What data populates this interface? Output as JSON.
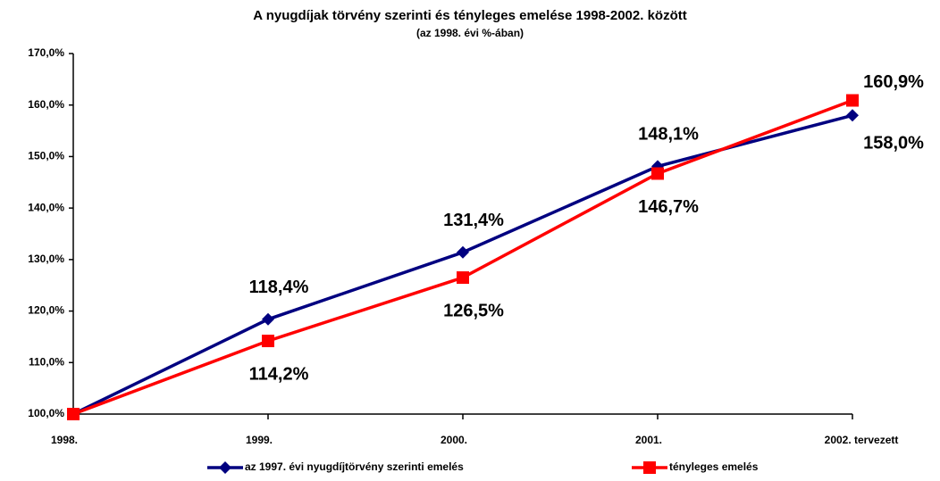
{
  "chart_data": {
    "type": "line",
    "title": "A nyugdíjak törvény szerinti és tényleges emelése 1998-2002. között",
    "subtitle": "(az 1998. évi %-ában)",
    "categories": [
      "1998.",
      "1999.",
      "2000.",
      "2001.",
      "2002. tervezett"
    ],
    "series": [
      {
        "name": "az 1997. évi nyugdíjtörvény szerinti emelés",
        "color": "#000080",
        "marker": "diamond",
        "values": [
          100,
          118.4,
          131.4,
          148.1,
          158.0
        ],
        "value_labels": [
          null,
          "118,4%",
          "131,4%",
          "148,1%",
          "158,0%"
        ]
      },
      {
        "name": "tényleges emelés",
        "color": "#ff0000",
        "marker": "square",
        "values": [
          100,
          114.2,
          126.5,
          146.7,
          160.9
        ],
        "value_labels": [
          null,
          "114,2%",
          "126,5%",
          "146,7%",
          "160,9%"
        ]
      }
    ],
    "ylim": [
      100,
      170
    ],
    "yticks": [
      {
        "value": 100,
        "label": "100,0%"
      },
      {
        "value": 110,
        "label": "110,0%"
      },
      {
        "value": 120,
        "label": "120,0%"
      },
      {
        "value": 130,
        "label": "130,0%"
      },
      {
        "value": 140,
        "label": "140,0%"
      },
      {
        "value": 150,
        "label": "150,0%"
      },
      {
        "value": 160,
        "label": "160,0%"
      },
      {
        "value": 170,
        "label": "170,0%"
      }
    ],
    "grid": false,
    "legend": "bottom"
  }
}
